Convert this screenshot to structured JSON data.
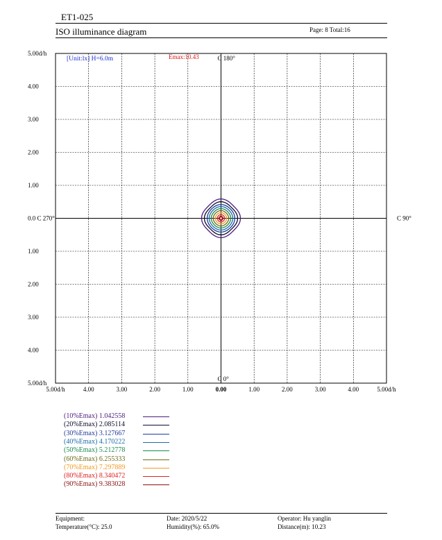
{
  "header": {
    "doc_id": "ET1-025",
    "doc_title": "ISO illuminance diagram",
    "page_info": "Page: 8  Total:16"
  },
  "chart_data": {
    "type": "contour",
    "unit_label": "[Unit:lx]   H=6.0m",
    "emax_label": "Emax:10.43",
    "emax": 10.43,
    "y_ticks": [
      "5.00d/h",
      "4.00",
      "3.00",
      "2.00",
      "1.00",
      "0.0 C 270°",
      "1.00",
      "2.00",
      "3.00",
      "4.00",
      "5.00d/h"
    ],
    "x_ticks": [
      "5.00d/h",
      "4.00",
      "3.00",
      "2.00",
      "1.00",
      "0.00",
      "1.00",
      "2.00",
      "3.00",
      "4.00",
      "5.00d/h"
    ],
    "axis_labels": {
      "top": "C 180°",
      "bottom": "C 0°",
      "right": "C 90°"
    },
    "xlim": [
      -5,
      5
    ],
    "ylim": [
      -5,
      5
    ],
    "grid": true,
    "contours": [
      {
        "label": "(10%Emax) 1.042558",
        "color": "#4b1a80",
        "rx": 0.56,
        "ry": 0.56
      },
      {
        "label": "(20%Emax) 2.085114",
        "color": "#0a0a2a",
        "rx": 0.48,
        "ry": 0.48
      },
      {
        "label": "(30%Emax) 3.127667",
        "color": "#1f3a9a",
        "rx": 0.41,
        "ry": 0.41
      },
      {
        "label": "(40%Emax) 4.170222",
        "color": "#1b6aa8",
        "rx": 0.35,
        "ry": 0.35
      },
      {
        "label": "(50%Emax) 5.212778",
        "color": "#1a8a4a",
        "rx": 0.29,
        "ry": 0.29
      },
      {
        "label": "(60%Emax) 6.255333",
        "color": "#6b6a1a",
        "rx": 0.23,
        "ry": 0.23
      },
      {
        "label": "(70%Emax) 7.297889",
        "color": "#f09a20",
        "rx": 0.17,
        "ry": 0.17
      },
      {
        "label": "(80%Emax) 8.340472",
        "color": "#e02020",
        "rx": 0.11,
        "ry": 0.11
      },
      {
        "label": "(90%Emax) 9.383028",
        "color": "#8a1010",
        "rx": 0.06,
        "ry": 0.06
      }
    ]
  },
  "footer": {
    "equipment": "Equipment:",
    "temperature": "Temperature(°C): 25.0",
    "date": "Date: 2020/5/22",
    "humidity": "Humidity(%): 65.0%",
    "operator": "Operator: Hu yanglin",
    "distance": "Distance(m): 10.23"
  }
}
